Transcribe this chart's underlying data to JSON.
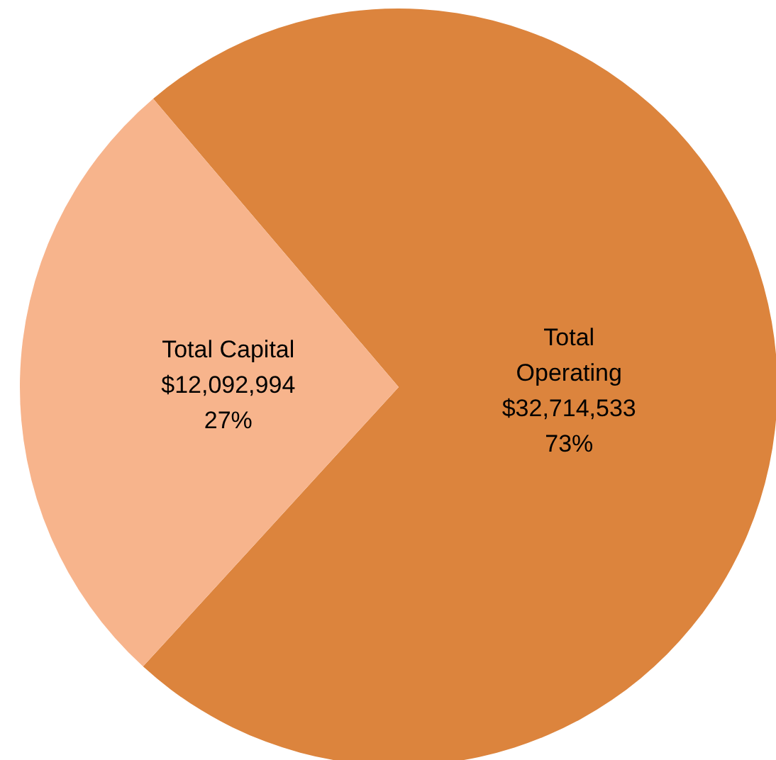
{
  "chart_data": {
    "type": "pie",
    "categories": [
      "Total Operating",
      "Total Capital"
    ],
    "values": [
      32714533,
      12092994
    ],
    "colors": [
      "#dc843d",
      "#f7b48c"
    ],
    "value_labels": [
      "$32,714,533\n73%",
      "$12,092,994\n27%"
    ]
  }
}
